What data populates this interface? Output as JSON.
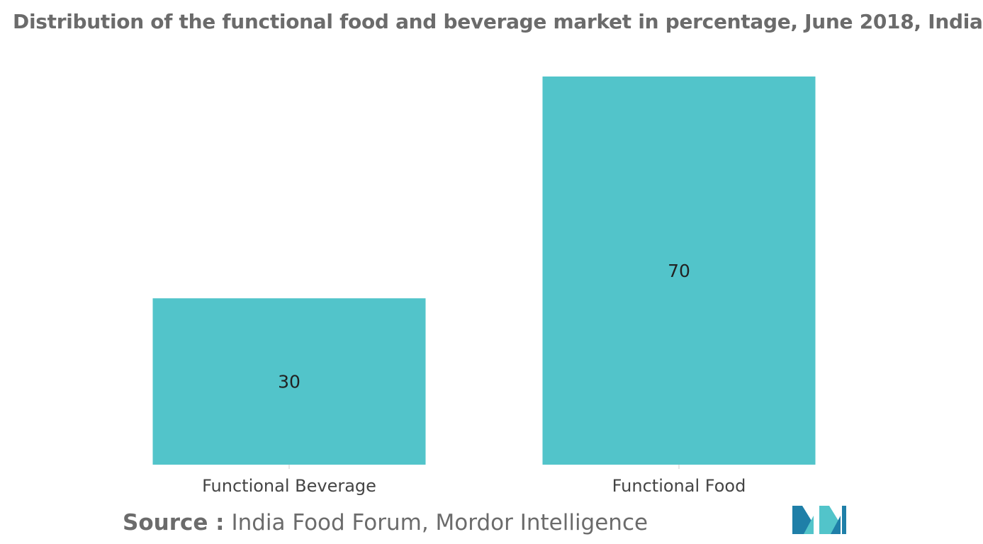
{
  "chart_data": {
    "type": "bar",
    "title": "Distribution of the functional food and beverage market in percentage, June 2018, India",
    "categories": [
      "Functional Beverage",
      "Functional Food"
    ],
    "values": [
      30,
      70
    ],
    "data_labels": [
      "30",
      "70"
    ],
    "xlabel": "",
    "ylabel": "",
    "ylim": [
      0,
      70
    ],
    "grid": false,
    "legend": "none",
    "bar_color": "#52c4ca"
  },
  "source": {
    "label": "Source :",
    "text": "India Food Forum, Mordor Intelligence"
  },
  "logo": {
    "icon": "mordor-intelligence-logo-icon",
    "colors": [
      "#1f7fa8",
      "#52c4ca"
    ]
  }
}
